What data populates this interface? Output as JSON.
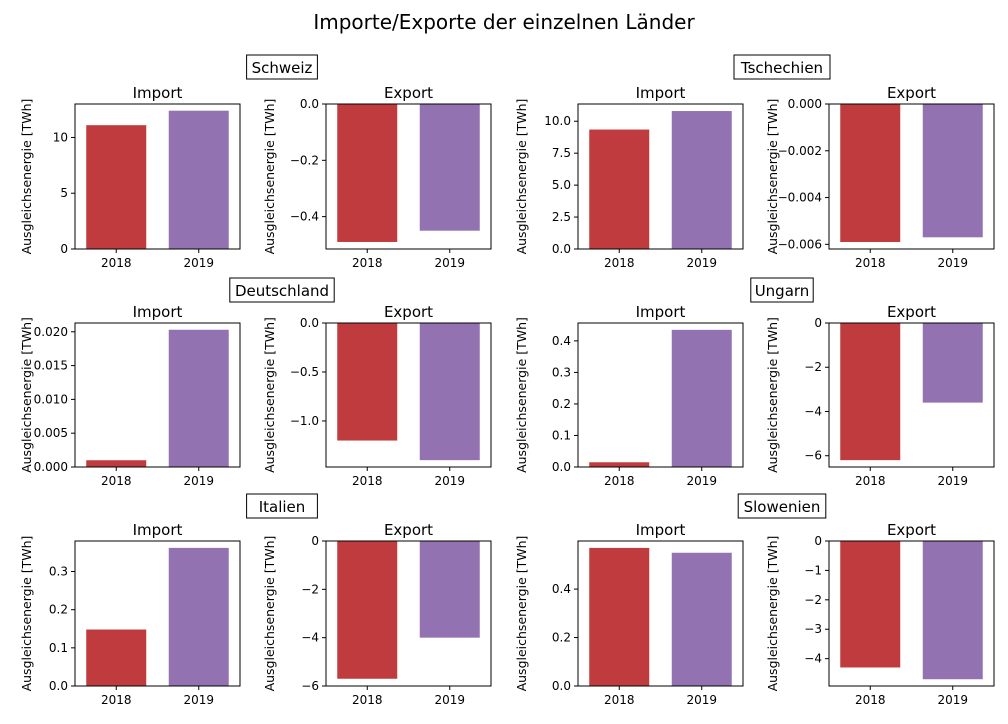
{
  "title": "Importe/Exporte der einzelnen Länder",
  "colors": {
    "y2018": "#c03b3d",
    "y2019": "#9372b1"
  },
  "chart_data": [
    {
      "type": "bar",
      "country": "Schweiz",
      "title": "Import",
      "ylabel": "Ausgleichsenergie [TWh]",
      "categories": [
        "2018",
        "2019"
      ],
      "values": [
        11.1,
        12.4
      ],
      "ylim": [
        0,
        13.0
      ],
      "yticks": [
        0,
        5,
        10
      ],
      "yticklabels": [
        "0",
        "5",
        "10"
      ]
    },
    {
      "type": "bar",
      "country": "Schweiz",
      "title": "Export",
      "ylabel": "Ausgleichsenergie [TWh]",
      "categories": [
        "2018",
        "2019"
      ],
      "values": [
        -0.49,
        -0.45
      ],
      "ylim": [
        -0.515,
        0.0
      ],
      "yticks": [
        0.0,
        -0.2,
        -0.4
      ],
      "yticklabels": [
        "0.0",
        "−0.2",
        "−0.4"
      ]
    },
    {
      "type": "bar",
      "country": "Tschechien",
      "title": "Import",
      "ylabel": "Ausgleichsenergie [TWh]",
      "categories": [
        "2018",
        "2019"
      ],
      "values": [
        9.35,
        10.8
      ],
      "ylim": [
        0,
        11.35
      ],
      "yticks": [
        0,
        2.5,
        5.0,
        7.5,
        10.0
      ],
      "yticklabels": [
        "0.0",
        "2.5",
        "5.0",
        "7.5",
        "10.0"
      ]
    },
    {
      "type": "bar",
      "country": "Tschechien",
      "title": "Export",
      "ylabel": "Ausgleichsenergie [TWh]",
      "categories": [
        "2018",
        "2019"
      ],
      "values": [
        -0.0059,
        -0.0057
      ],
      "ylim": [
        -0.0062,
        0.0
      ],
      "yticks": [
        0.0,
        -0.002,
        -0.004,
        -0.006
      ],
      "yticklabels": [
        "0.000",
        "−0.002",
        "−0.004",
        "−0.006"
      ]
    },
    {
      "type": "bar",
      "country": "Deutschland",
      "title": "Import",
      "ylabel": "Ausgleichsenergie [TWh]",
      "categories": [
        "2018",
        "2019"
      ],
      "values": [
        0.001,
        0.0203
      ],
      "ylim": [
        0,
        0.0213
      ],
      "yticks": [
        0,
        0.005,
        0.01,
        0.015,
        0.02
      ],
      "yticklabels": [
        "0.000",
        "0.005",
        "0.010",
        "0.015",
        "0.020"
      ]
    },
    {
      "type": "bar",
      "country": "Deutschland",
      "title": "Export",
      "ylabel": "Ausgleichsenergie [TWh]",
      "categories": [
        "2018",
        "2019"
      ],
      "values": [
        -1.2,
        -1.4
      ],
      "ylim": [
        -1.47,
        0.0
      ],
      "yticks": [
        0.0,
        -0.5,
        -1.0
      ],
      "yticklabels": [
        "0.0",
        "−0.5",
        "−1.0"
      ]
    },
    {
      "type": "bar",
      "country": "Ungarn",
      "title": "Import",
      "ylabel": "Ausgleichsenergie [TWh]",
      "categories": [
        "2018",
        "2019"
      ],
      "values": [
        0.015,
        0.435
      ],
      "ylim": [
        0,
        0.4567
      ],
      "yticks": [
        0,
        0.1,
        0.2,
        0.3,
        0.4
      ],
      "yticklabels": [
        "0.0",
        "0.1",
        "0.2",
        "0.3",
        "0.4"
      ]
    },
    {
      "type": "bar",
      "country": "Ungarn",
      "title": "Export",
      "ylabel": "Ausgleichsenergie [TWh]",
      "categories": [
        "2018",
        "2019"
      ],
      "values": [
        -6.2,
        -3.6
      ],
      "ylim": [
        -6.51,
        0.0
      ],
      "yticks": [
        0,
        -2,
        -4,
        -6
      ],
      "yticklabels": [
        "0",
        "−2",
        "−4",
        "−6"
      ]
    },
    {
      "type": "bar",
      "country": "Italien",
      "title": "Import",
      "ylabel": "Ausgleichsenergie [TWh]",
      "categories": [
        "2018",
        "2019"
      ],
      "values": [
        0.148,
        0.362
      ],
      "ylim": [
        0,
        0.38
      ],
      "yticks": [
        0,
        0.1,
        0.2,
        0.3
      ],
      "yticklabels": [
        "0.0",
        "0.1",
        "0.2",
        "0.3"
      ]
    },
    {
      "type": "bar",
      "country": "Italien",
      "title": "Export",
      "ylabel": "Ausgleichsenergie [TWh]",
      "categories": [
        "2018",
        "2019"
      ],
      "values": [
        -5.7,
        -4.0
      ],
      "ylim": [
        -6.0,
        0.0
      ],
      "yticks": [
        0,
        -2,
        -4,
        -6
      ],
      "yticklabels": [
        "0",
        "−2",
        "−4",
        "−6"
      ]
    },
    {
      "type": "bar",
      "country": "Slowenien",
      "title": "Import",
      "ylabel": "Ausgleichsenergie [TWh]",
      "categories": [
        "2018",
        "2019"
      ],
      "values": [
        0.57,
        0.55
      ],
      "ylim": [
        0,
        0.5985
      ],
      "yticks": [
        0,
        0.2,
        0.4
      ],
      "yticklabels": [
        "0.0",
        "0.2",
        "0.4"
      ]
    },
    {
      "type": "bar",
      "country": "Slowenien",
      "title": "Export",
      "ylabel": "Ausgleichsenergie [TWh]",
      "categories": [
        "2018",
        "2019"
      ],
      "values": [
        -4.3,
        -4.7
      ],
      "ylim": [
        -4.93,
        0.0
      ],
      "yticks": [
        0,
        -1,
        -2,
        -3,
        -4
      ],
      "yticklabels": [
        "0",
        "−1",
        "−2",
        "−3",
        "−4"
      ]
    }
  ]
}
